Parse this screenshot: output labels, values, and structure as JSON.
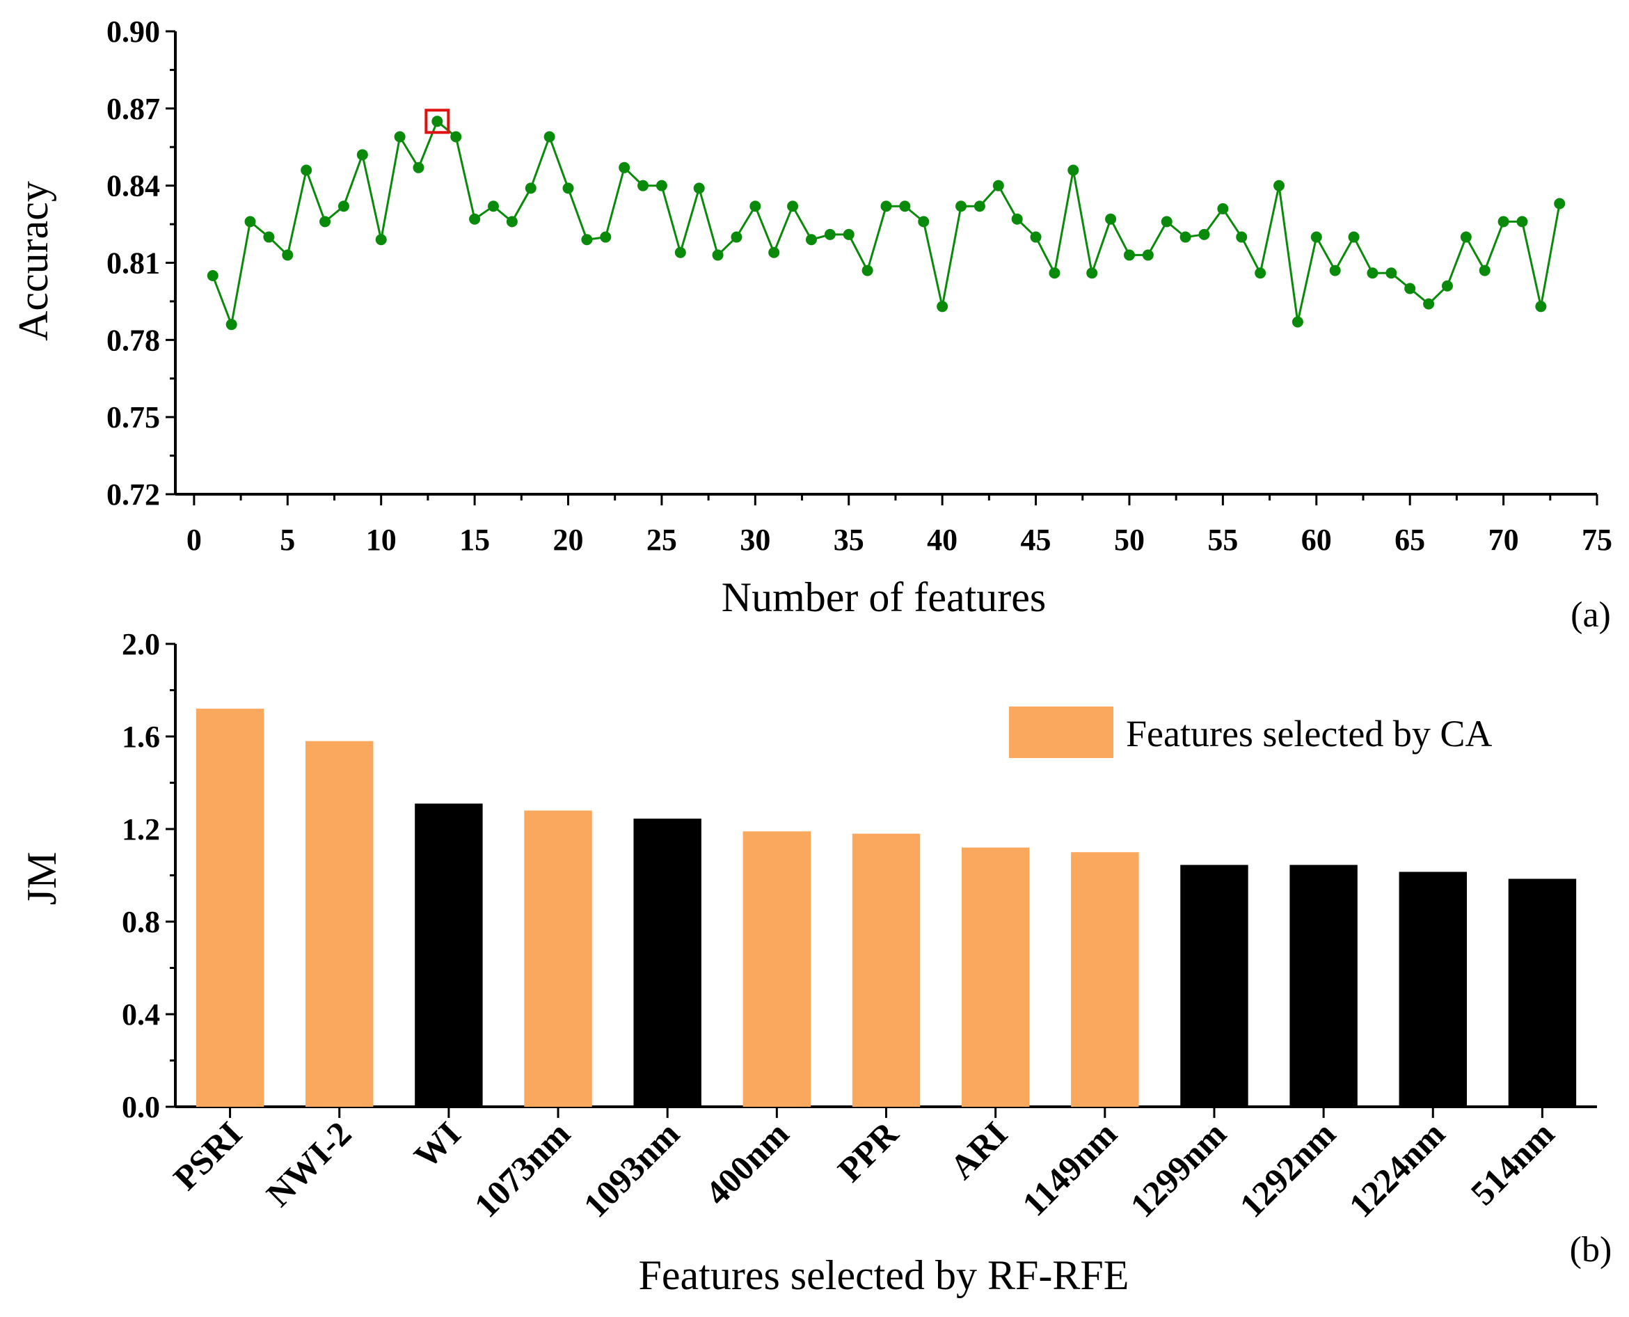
{
  "chart_data": [
    {
      "type": "line",
      "panel_label": "(a)",
      "xlabel": "Number of features",
      "ylabel": "Accuracy",
      "xlim": [
        -1,
        75
      ],
      "ylim": [
        0.72,
        0.9
      ],
      "xticks": [
        "0",
        "5",
        "10",
        "15",
        "20",
        "25",
        "30",
        "35",
        "40",
        "45",
        "50",
        "55",
        "60",
        "65",
        "70",
        "75"
      ],
      "yticks": [
        "0.72",
        "0.75",
        "0.78",
        "0.81",
        "0.84",
        "0.87",
        "0.90"
      ],
      "line_color": "#0a8a0a",
      "highlight_color": "#e01010",
      "highlight_x": 13,
      "x": [
        1,
        2,
        3,
        4,
        5,
        6,
        7,
        8,
        9,
        10,
        11,
        12,
        13,
        14,
        15,
        16,
        17,
        18,
        19,
        20,
        21,
        22,
        23,
        24,
        25,
        26,
        27,
        28,
        29,
        30,
        31,
        32,
        33,
        34,
        35,
        36,
        37,
        38,
        39,
        40,
        41,
        42,
        43,
        44,
        45,
        46,
        47,
        48,
        49,
        50,
        51,
        52,
        53,
        54,
        55,
        56,
        57,
        58,
        59,
        60,
        61,
        62,
        63,
        64,
        65,
        66,
        67,
        68,
        69,
        70,
        71,
        72,
        73
      ],
      "values": [
        0.805,
        0.786,
        0.826,
        0.82,
        0.813,
        0.846,
        0.826,
        0.832,
        0.852,
        0.819,
        0.859,
        0.847,
        0.865,
        0.859,
        0.827,
        0.832,
        0.826,
        0.839,
        0.859,
        0.839,
        0.819,
        0.82,
        0.847,
        0.84,
        0.84,
        0.814,
        0.839,
        0.813,
        0.82,
        0.832,
        0.814,
        0.832,
        0.819,
        0.821,
        0.821,
        0.807,
        0.832,
        0.832,
        0.826,
        0.793,
        0.832,
        0.832,
        0.84,
        0.827,
        0.82,
        0.806,
        0.846,
        0.806,
        0.827,
        0.813,
        0.813,
        0.826,
        0.82,
        0.821,
        0.831,
        0.82,
        0.806,
        0.84,
        0.787,
        0.82,
        0.807,
        0.82,
        0.806,
        0.806,
        0.8,
        0.794,
        0.801,
        0.82,
        0.807,
        0.826,
        0.826,
        0.793,
        0.833
      ]
    },
    {
      "type": "bar",
      "panel_label": "(b)",
      "xlabel": "Features selected by RF-RFE",
      "ylabel": "JM",
      "ylim": [
        0.0,
        2.0
      ],
      "yticks": [
        "0.0",
        "0.4",
        "0.8",
        "1.2",
        "1.6",
        "2.0"
      ],
      "categories": [
        "PSRI",
        "NWI-2",
        "WI",
        "1073nm",
        "1093nm",
        "400nm",
        "PPR",
        "ARI",
        "1149nm",
        "1299nm",
        "1292nm",
        "1224nm",
        "514nm"
      ],
      "values": [
        1.72,
        1.58,
        1.31,
        1.28,
        1.245,
        1.19,
        1.18,
        1.12,
        1.1,
        1.045,
        1.045,
        1.015,
        0.985
      ],
      "selected_by_ca": [
        true,
        true,
        false,
        true,
        false,
        true,
        true,
        true,
        true,
        false,
        false,
        false,
        false
      ],
      "ca_color": "#fba85f",
      "other_color": "#000000",
      "legend": "Features selected by CA"
    }
  ]
}
